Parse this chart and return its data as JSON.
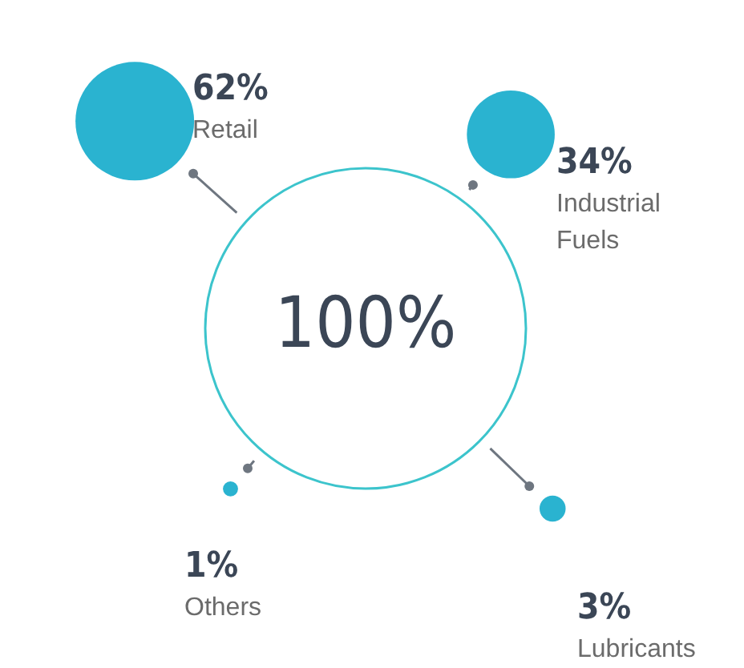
{
  "chart_data": {
    "type": "other",
    "categories": [
      "Retail",
      "Industrial Fuels",
      "Others",
      "Lubricants"
    ],
    "values": [
      62,
      34,
      1,
      3
    ],
    "value_labels": [
      "62%",
      "34%",
      "1%",
      "3%"
    ],
    "colors": [
      "#2ab3d0",
      "#2ab3d0",
      "#2ab3d0",
      "#2ab3d0"
    ],
    "annotations": [
      "100%"
    ]
  }
}
